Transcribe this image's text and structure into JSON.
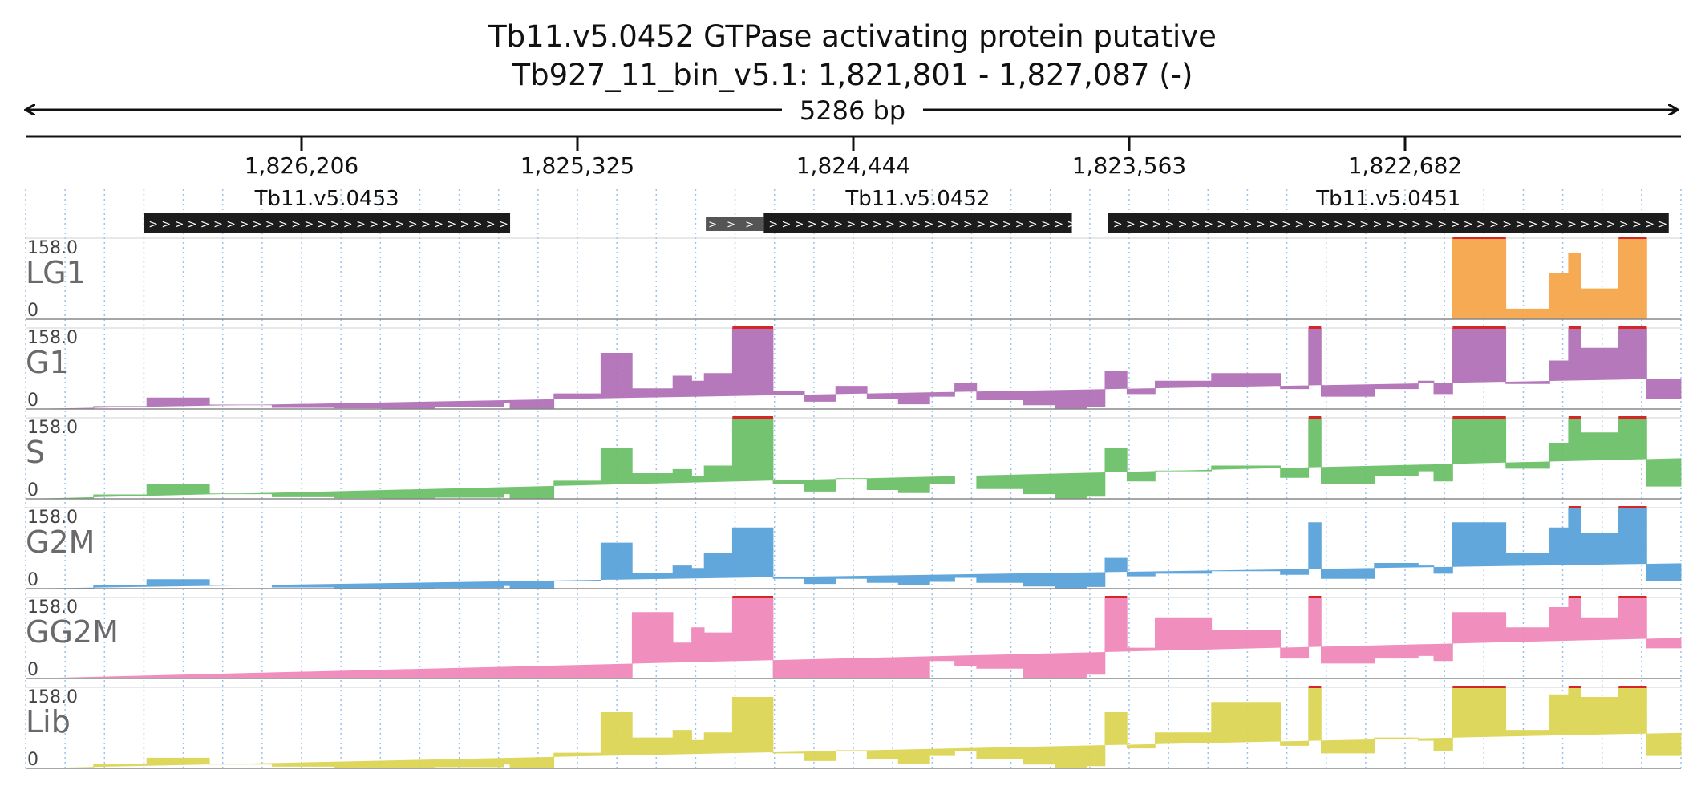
{
  "chart_data": {
    "type": "area",
    "title": "Tb11.v5.0452  GTPase activating protein  putative",
    "subtitle": "Tb927_11_bin_v5.1: 1,821,801 - 1,827,087 (-)",
    "region": {
      "chrom": "Tb927_11_bin_v5.1",
      "start": 1821801,
      "end": 1827087,
      "strand": "-"
    },
    "length_label": "5286 bp",
    "xlim": [
      1827087,
      1821801
    ],
    "ticks": [
      {
        "pos": 1826206,
        "label": "1,826,206"
      },
      {
        "pos": 1825325,
        "label": "1,825,325"
      },
      {
        "pos": 1824444,
        "label": "1,824,444"
      },
      {
        "pos": 1823563,
        "label": "1,823,563"
      },
      {
        "pos": 1822682,
        "label": "1,822,682"
      }
    ],
    "genes": [
      {
        "name": "Tb11.v5.0453",
        "start": 1826710,
        "end": 1825540
      },
      {
        "name": "Tb11.v5.0452",
        "start": 1824730,
        "end": 1823746,
        "utr_start": 1824915
      },
      {
        "name": "Tb11.v5.0451",
        "start": 1823630,
        "end": 1821840
      }
    ],
    "track_scale": {
      "min": 0,
      "max": 158.0,
      "min_label": "0",
      "max_label": "158.0"
    },
    "breakpoints": [
      1827087,
      1826870,
      1826700,
      1826500,
      1826300,
      1826100,
      1825950,
      1825780,
      1825560,
      1825540,
      1825480,
      1825400,
      1825250,
      1825150,
      1825020,
      1824960,
      1824920,
      1824830,
      1824700,
      1824600,
      1824500,
      1824400,
      1824300,
      1824200,
      1824120,
      1824050,
      1823900,
      1823800,
      1823700,
      1823640,
      1823570,
      1823480,
      1823300,
      1823080,
      1822990,
      1822950,
      1822780,
      1822640,
      1822590,
      1822530,
      1822360,
      1822220,
      1822160,
      1822120,
      1822000,
      1821910,
      1821801
    ],
    "series": [
      {
        "name": "LG1",
        "color": "#f5a64a",
        "values": [
          0,
          0,
          0,
          0,
          0,
          0,
          0,
          0,
          0,
          0,
          0,
          0,
          0,
          0,
          0,
          0,
          0,
          0,
          0,
          0,
          0,
          0,
          0,
          0,
          0,
          0,
          0,
          0,
          0,
          0,
          0,
          0,
          0,
          0,
          0,
          0,
          0,
          0,
          0,
          158,
          20,
          90,
          130,
          60,
          158,
          0,
          0
        ]
      },
      {
        "name": "G1",
        "color": "#b071b8",
        "values": [
          0,
          5,
          22,
          8,
          3,
          2,
          1,
          4,
          12,
          0,
          0,
          30,
          110,
          40,
          65,
          55,
          70,
          158,
          35,
          15,
          45,
          20,
          10,
          25,
          50,
          18,
          8,
          0,
          5,
          75,
          30,
          55,
          70,
          40,
          158,
          25,
          40,
          55,
          30,
          158,
          50,
          95,
          158,
          120,
          158,
          20,
          60
        ]
      },
      {
        "name": "S",
        "color": "#6cc06a",
        "values": [
          0,
          8,
          28,
          10,
          4,
          2,
          1,
          3,
          10,
          0,
          0,
          35,
          100,
          50,
          58,
          45,
          65,
          158,
          30,
          15,
          40,
          18,
          12,
          30,
          45,
          20,
          10,
          0,
          5,
          100,
          35,
          55,
          65,
          42,
          158,
          30,
          45,
          55,
          35,
          158,
          60,
          110,
          158,
          130,
          158,
          25,
          80
        ]
      },
      {
        "name": "G2M",
        "color": "#5aa3db",
        "values": [
          0,
          6,
          18,
          7,
          3,
          1,
          1,
          2,
          6,
          0,
          0,
          15,
          90,
          30,
          45,
          40,
          70,
          120,
          20,
          10,
          20,
          12,
          8,
          14,
          22,
          12,
          5,
          0,
          4,
          60,
          25,
          30,
          35,
          28,
          130,
          20,
          50,
          45,
          30,
          130,
          70,
          120,
          158,
          110,
          158,
          15,
          50
        ]
      },
      {
        "name": "GG2M",
        "color": "#f08abb",
        "values": [
          0,
          0,
          0,
          0,
          0,
          0,
          0,
          0,
          0,
          0,
          0,
          0,
          0,
          130,
          70,
          100,
          90,
          158,
          0,
          0,
          0,
          0,
          0,
          35,
          25,
          20,
          0,
          0,
          8,
          158,
          60,
          120,
          95,
          40,
          158,
          30,
          40,
          45,
          35,
          130,
          100,
          140,
          158,
          120,
          158,
          60,
          80
        ]
      },
      {
        "name": "Lib",
        "color": "#ddd555",
        "values": [
          0,
          8,
          20,
          8,
          4,
          2,
          1,
          3,
          8,
          0,
          0,
          30,
          110,
          60,
          75,
          55,
          70,
          140,
          30,
          15,
          35,
          18,
          10,
          25,
          35,
          18,
          8,
          0,
          5,
          110,
          40,
          70,
          130,
          45,
          158,
          30,
          60,
          55,
          35,
          158,
          75,
          145,
          158,
          140,
          158,
          25,
          70
        ]
      }
    ]
  }
}
